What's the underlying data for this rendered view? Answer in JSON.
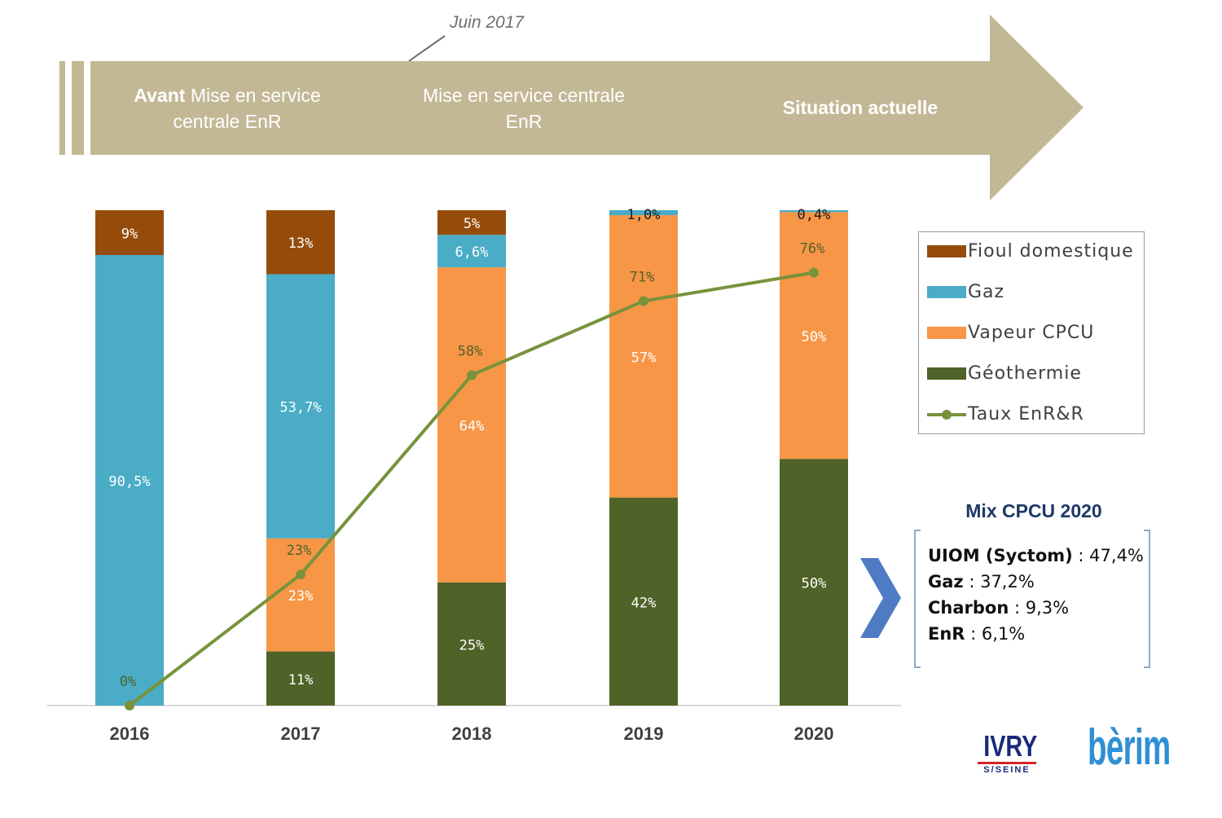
{
  "banner": {
    "callout": "Juin 2017",
    "phase1_bold": "Avant",
    "phase1_line1": "Mise en service",
    "phase1_line2": "centrale EnR",
    "phase2_line1": "Mise en service centrale",
    "phase2_line2": "EnR",
    "phase3": "Situation actuelle"
  },
  "colors": {
    "banner": "#c3b896",
    "fioul": "#954c0a",
    "gaz": "#4aacc6",
    "vapeur": "#f79646",
    "geothermie": "#4f6228",
    "taux_line": "#77933c",
    "axis": "#d9d9d9"
  },
  "chart_data": {
    "type": "bar",
    "stacked": true,
    "categories": [
      "2016",
      "2017",
      "2018",
      "2019",
      "2020"
    ],
    "ylim": [
      0,
      100
    ],
    "series": [
      {
        "name": "Géothermie",
        "key": "geothermie",
        "values": [
          0,
          11,
          25,
          42,
          50
        ],
        "labels": [
          "",
          "11%",
          "25%",
          "42%",
          "50%"
        ]
      },
      {
        "name": "Vapeur CPCU",
        "key": "vapeur",
        "values": [
          0,
          23,
          64,
          57,
          50
        ],
        "labels": [
          "",
          "23%",
          "64%",
          "57%",
          "50%"
        ]
      },
      {
        "name": "Gaz",
        "key": "gaz",
        "values": [
          90.5,
          53.7,
          6.6,
          1.0,
          0.4
        ],
        "labels": [
          "90,5%",
          "53,7%",
          "6,6%",
          "1,0%",
          "0,4%"
        ]
      },
      {
        "name": "Fioul domestique",
        "key": "fioul",
        "values": [
          9,
          13,
          5,
          0,
          0
        ],
        "labels": [
          "9%",
          "13%",
          "5%",
          "",
          ""
        ]
      }
    ],
    "line_series": {
      "name": "Taux EnR&R",
      "key": "taux",
      "values": [
        0,
        23,
        58,
        71,
        76
      ],
      "labels": [
        "0%",
        "23%",
        "58%",
        "71%",
        "76%"
      ]
    },
    "legend": [
      "Fioul domestique",
      "Gaz",
      "Vapeur CPCU",
      "Géothermie",
      "Taux EnR&R"
    ],
    "legend_position": "right"
  },
  "mix": {
    "title": "Mix CPCU 2020",
    "lines": [
      {
        "label": "UIOM (Syctom)",
        "value": "47,4%"
      },
      {
        "label": "Gaz",
        "value": "37,2%"
      },
      {
        "label": "Charbon",
        "value": "9,3%"
      },
      {
        "label": "EnR",
        "value": "6,1%"
      }
    ]
  },
  "logos": {
    "ivry_main": "IVRY",
    "ivry_sub": "S/SEINE",
    "berim": "bèrim"
  }
}
